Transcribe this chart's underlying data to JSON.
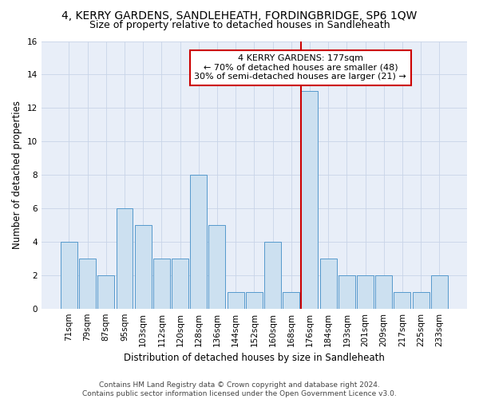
{
  "title": "4, KERRY GARDENS, SANDLEHEATH, FORDINGBRIDGE, SP6 1QW",
  "subtitle": "Size of property relative to detached houses in Sandleheath",
  "xlabel": "Distribution of detached houses by size in Sandleheath",
  "ylabel": "Number of detached properties",
  "categories": [
    "71sqm",
    "79sqm",
    "87sqm",
    "95sqm",
    "103sqm",
    "112sqm",
    "120sqm",
    "128sqm",
    "136sqm",
    "144sqm",
    "152sqm",
    "160sqm",
    "168sqm",
    "176sqm",
    "184sqm",
    "193sqm",
    "201sqm",
    "209sqm",
    "217sqm",
    "225sqm",
    "233sqm"
  ],
  "values": [
    4,
    3,
    2,
    6,
    5,
    3,
    3,
    8,
    5,
    1,
    1,
    4,
    1,
    13,
    3,
    2,
    2,
    2,
    1,
    1,
    2
  ],
  "bar_color": "#cce0f0",
  "bar_edge_color": "#5599cc",
  "highlight_index": 13,
  "highlight_line_color": "#cc0000",
  "annotation_text": "4 KERRY GARDENS: 177sqm\n← 70% of detached houses are smaller (48)\n30% of semi-detached houses are larger (21) →",
  "annotation_box_color": "#ffffff",
  "annotation_box_edge": "#cc0000",
  "ylim": [
    0,
    16
  ],
  "yticks": [
    0,
    2,
    4,
    6,
    8,
    10,
    12,
    14,
    16
  ],
  "grid_color": "#c8d4e8",
  "bg_color": "#e8eef8",
  "footer": "Contains HM Land Registry data © Crown copyright and database right 2024.\nContains public sector information licensed under the Open Government Licence v3.0.",
  "title_fontsize": 10,
  "subtitle_fontsize": 9,
  "axis_label_fontsize": 8.5,
  "tick_fontsize": 7.5,
  "footer_fontsize": 6.5,
  "bar_width": 0.9
}
